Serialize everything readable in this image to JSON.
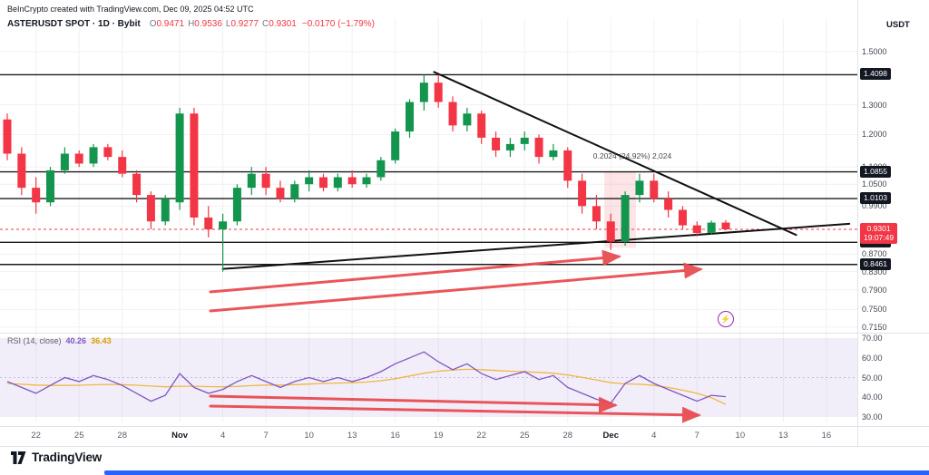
{
  "header": {
    "attribution": "BeInCrypto created with TradingView.com, Dec 09, 2025 04:52 UTC",
    "symbol_line": {
      "symbol": "ASTERUSDT SPOT · 1D · Bybit",
      "o_label": "O",
      "o_value": "0.9471",
      "h_label": "H",
      "h_value": "0.9536",
      "l_label": "L",
      "l_value": "0.9277",
      "c_label": "C",
      "c_value": "0.9301",
      "change": "−0.0170 (−1.79%)"
    },
    "quote_currency": "USDT"
  },
  "rsi_pane": {
    "legend_label": "RSI (14, close)",
    "value": "40.26",
    "ma_value": "36.43"
  },
  "price_axis": {
    "labels": [
      {
        "text": "1.5000",
        "price": 1.5
      },
      {
        "text": "1.3000",
        "price": 1.3
      },
      {
        "text": "1.2000",
        "price": 1.2
      },
      {
        "text": "1.1000",
        "price": 1.1
      },
      {
        "text": "1.0500",
        "price": 1.05
      },
      {
        "text": "0.9900",
        "price": 0.99
      },
      {
        "text": "0.8700",
        "price": 0.87
      },
      {
        "text": "0.8300",
        "price": 0.83
      },
      {
        "text": "0.7900",
        "price": 0.79
      },
      {
        "text": "0.7500",
        "price": 0.75
      },
      {
        "text": "0.7150",
        "price": 0.715
      }
    ],
    "badges": [
      {
        "text": "1.4098",
        "price": 1.4098
      },
      {
        "text": "1.0855",
        "price": 1.0855
      },
      {
        "text": "1.0103",
        "price": 1.0103
      },
      {
        "text": "0.8981",
        "price": 0.8981
      },
      {
        "text": "0.8461",
        "price": 0.8461
      }
    ],
    "last_badge": {
      "text": "0.9301",
      "countdown": "19:07:49",
      "price": 0.9301
    }
  },
  "rsi_axis": {
    "labels": [
      {
        "text": "70.00",
        "value": 70
      },
      {
        "text": "60.00",
        "value": 60
      },
      {
        "text": "50.00",
        "value": 50
      },
      {
        "text": "40.00",
        "value": 40
      },
      {
        "text": "30.00",
        "value": 30
      }
    ]
  },
  "time_axis": {
    "labels": [
      {
        "text": "22",
        "i": 2,
        "month": false
      },
      {
        "text": "25",
        "i": 5,
        "month": false
      },
      {
        "text": "28",
        "i": 8,
        "month": false
      },
      {
        "text": "Nov",
        "i": 12,
        "month": true
      },
      {
        "text": "4",
        "i": 15,
        "month": false
      },
      {
        "text": "7",
        "i": 18,
        "month": false
      },
      {
        "text": "10",
        "i": 21,
        "month": false
      },
      {
        "text": "13",
        "i": 24,
        "month": false
      },
      {
        "text": "16",
        "i": 27,
        "month": false
      },
      {
        "text": "19",
        "i": 30,
        "month": false
      },
      {
        "text": "22",
        "i": 33,
        "month": false
      },
      {
        "text": "25",
        "i": 36,
        "month": false
      },
      {
        "text": "28",
        "i": 39,
        "month": false
      },
      {
        "text": "Dec",
        "i": 42,
        "month": true
      },
      {
        "text": "4",
        "i": 45,
        "month": false
      },
      {
        "text": "7",
        "i": 48,
        "month": false
      },
      {
        "text": "10",
        "i": 51,
        "month": false
      },
      {
        "text": "13",
        "i": 54,
        "month": false
      },
      {
        "text": "16",
        "i": 57,
        "month": false
      }
    ]
  },
  "footer": {
    "logo_text": "TradingView"
  },
  "icons": {
    "boost": "⚡"
  },
  "chart_data": {
    "type": "candlestick",
    "title": "ASTERUSDT SPOT · 1D · Bybit",
    "price_scale": "log",
    "ylim": [
      0.7,
      1.6
    ],
    "last_price": 0.9301,
    "ohlc": [
      [
        1.25,
        1.27,
        1.12,
        1.14
      ],
      [
        1.14,
        1.16,
        1.02,
        1.04
      ],
      [
        1.04,
        1.07,
        0.97,
        1.0
      ],
      [
        1.0,
        1.1,
        0.99,
        1.09
      ],
      [
        1.09,
        1.16,
        1.08,
        1.14
      ],
      [
        1.14,
        1.15,
        1.1,
        1.11
      ],
      [
        1.11,
        1.17,
        1.1,
        1.16
      ],
      [
        1.16,
        1.17,
        1.12,
        1.13
      ],
      [
        1.13,
        1.15,
        1.07,
        1.08
      ],
      [
        1.08,
        1.09,
        1.0,
        1.02
      ],
      [
        1.02,
        1.03,
        0.93,
        0.95
      ],
      [
        0.95,
        1.02,
        0.94,
        1.01
      ],
      [
        1.0,
        1.29,
        0.98,
        1.27
      ],
      [
        1.27,
        1.29,
        0.94,
        0.96
      ],
      [
        0.96,
        0.99,
        0.91,
        0.93
      ],
      [
        0.93,
        0.97,
        0.83,
        0.95
      ],
      [
        0.95,
        1.05,
        0.94,
        1.04
      ],
      [
        1.04,
        1.1,
        1.02,
        1.08
      ],
      [
        1.08,
        1.1,
        1.02,
        1.04
      ],
      [
        1.04,
        1.06,
        1.0,
        1.01
      ],
      [
        1.01,
        1.06,
        1.0,
        1.05
      ],
      [
        1.05,
        1.09,
        1.03,
        1.07
      ],
      [
        1.07,
        1.08,
        1.03,
        1.04
      ],
      [
        1.04,
        1.08,
        1.03,
        1.07
      ],
      [
        1.07,
        1.09,
        1.04,
        1.05
      ],
      [
        1.05,
        1.08,
        1.04,
        1.07
      ],
      [
        1.07,
        1.13,
        1.06,
        1.12
      ],
      [
        1.12,
        1.22,
        1.11,
        1.21
      ],
      [
        1.21,
        1.32,
        1.19,
        1.31
      ],
      [
        1.31,
        1.41,
        1.28,
        1.38
      ],
      [
        1.38,
        1.41,
        1.29,
        1.31
      ],
      [
        1.31,
        1.33,
        1.21,
        1.23
      ],
      [
        1.23,
        1.29,
        1.21,
        1.27
      ],
      [
        1.27,
        1.28,
        1.17,
        1.19
      ],
      [
        1.19,
        1.21,
        1.13,
        1.15
      ],
      [
        1.15,
        1.19,
        1.13,
        1.17
      ],
      [
        1.17,
        1.21,
        1.15,
        1.19
      ],
      [
        1.19,
        1.2,
        1.11,
        1.13
      ],
      [
        1.13,
        1.17,
        1.12,
        1.15
      ],
      [
        1.15,
        1.16,
        1.04,
        1.06
      ],
      [
        1.06,
        1.08,
        0.97,
        0.99
      ],
      [
        0.99,
        1.02,
        0.93,
        0.95
      ],
      [
        0.95,
        0.97,
        0.88,
        0.9
      ],
      [
        0.9,
        1.03,
        0.89,
        1.02
      ],
      [
        1.02,
        1.08,
        1.0,
        1.06
      ],
      [
        1.06,
        1.08,
        1.0,
        1.01
      ],
      [
        1.01,
        1.03,
        0.96,
        0.98
      ],
      [
        0.98,
        0.99,
        0.93,
        0.94
      ],
      [
        0.94,
        0.95,
        0.912,
        0.921
      ],
      [
        0.921,
        0.952,
        0.918,
        0.947
      ],
      [
        0.9471,
        0.9536,
        0.9277,
        0.9301
      ]
    ],
    "sr_levels": [
      1.4098,
      1.0855,
      1.0103,
      0.8981,
      0.8461
    ],
    "rsi": {
      "label": "RSI (14, close)",
      "range": [
        30,
        70
      ],
      "values": [
        48,
        45,
        42,
        46,
        50,
        48,
        51,
        49,
        46,
        42,
        38,
        41,
        52,
        45,
        42,
        44,
        48,
        51,
        48,
        45,
        48,
        50,
        48,
        50,
        48,
        50,
        53,
        57,
        60,
        63,
        58,
        54,
        57,
        52,
        49,
        51,
        53,
        49,
        51,
        45,
        42,
        39,
        37,
        47,
        51,
        47,
        44,
        41,
        38,
        41,
        40.3
      ],
      "ma_values": [
        47,
        46.6,
        46.2,
        46,
        46,
        46.1,
        46.3,
        46.5,
        46.4,
        46.1,
        45.7,
        45.3,
        45.6,
        45.6,
        45.4,
        45.3,
        45.5,
        45.9,
        46.2,
        46.2,
        46.4,
        46.7,
        47,
        47.2,
        47.4,
        47.7,
        48.4,
        49.4,
        50.8,
        52.2,
        53.2,
        53.8,
        54.2,
        54,
        53.6,
        53.2,
        53,
        52.6,
        52.2,
        51.3,
        50.1,
        48.8,
        47.4,
        46.8,
        46.6,
        46,
        45,
        43.6,
        42,
        39.8,
        36.4
      ]
    },
    "annotations": {
      "measure_label": {
        "text": "0.2024 (24.92%) 2,024"
      },
      "highlight_box": {
        "i1": 41.55,
        "i2": 43.75,
        "p_top": 1.085,
        "p_bottom": 0.885
      },
      "trendlines": [
        {
          "i1": 29.7,
          "p1": 1.42,
          "i2": 54.9,
          "p2": 0.916
        },
        {
          "i1": 15.0,
          "p1": 0.836,
          "i2": 58.6,
          "p2": 0.944
        }
      ],
      "arrows_price": [
        [
          232,
          322,
          682,
          283
        ],
        [
          232,
          343,
          772,
          297
        ]
      ],
      "arrows_rsi": [
        [
          232,
          437,
          678,
          447
        ],
        [
          232,
          448,
          770,
          458
        ]
      ]
    },
    "colors": {
      "up": "#13954d",
      "down": "#f23645",
      "sr_line": "#1b1b1b",
      "trendline": "#111111",
      "arrow": "#e8484d",
      "rsi_line": "#7e57c2",
      "rsi_ma": "#f0b742",
      "rsi_band": "rgba(126,87,194,0.10)",
      "last_badge": "#f23645",
      "accent_blue": "#2962ff"
    }
  }
}
